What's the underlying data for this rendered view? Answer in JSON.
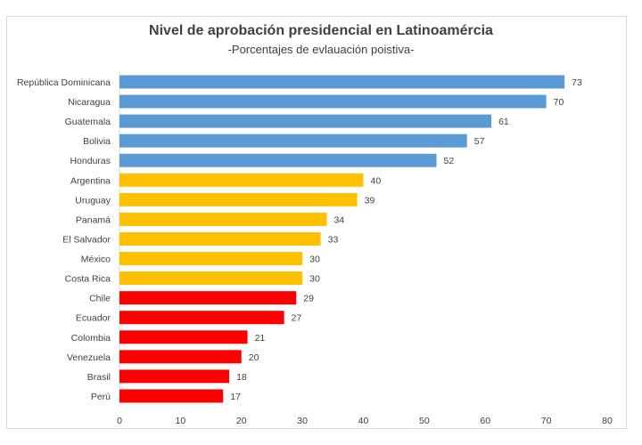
{
  "chart_data": {
    "type": "bar",
    "orientation": "horizontal",
    "title": "Nivel de aprobación presidencial en Latinoamércia",
    "subtitle": "-Porcentajes de evlauación poistiva-",
    "categories": [
      "República Dominicana",
      "Nicaragua",
      "Guatemala",
      "Bolivia",
      "Honduras",
      "Argentina",
      "Uruguay",
      "Panamá",
      "El Salvador",
      "México",
      "Costa Rica",
      "Chile",
      "Ecuador",
      "Colombia",
      "Venezuela",
      "Brasil",
      "Perú"
    ],
    "values": [
      73,
      70,
      61,
      57,
      52,
      40,
      39,
      34,
      33,
      30,
      30,
      29,
      27,
      21,
      20,
      18,
      17
    ],
    "bar_colors": [
      "#5B9BD5",
      "#5B9BD5",
      "#5B9BD5",
      "#5B9BD5",
      "#5B9BD5",
      "#FFC000",
      "#FFC000",
      "#FFC000",
      "#FFC000",
      "#FFC000",
      "#FFC000",
      "#FF0000",
      "#FF0000",
      "#FF0000",
      "#FF0000",
      "#FF0000",
      "#FF0000"
    ],
    "xlim": [
      0,
      80
    ],
    "xticks": [
      "0",
      "10",
      "20",
      "30",
      "40",
      "50",
      "60",
      "70",
      "80"
    ],
    "grid": false,
    "data_labels": true,
    "xlabel": "",
    "ylabel": ""
  }
}
